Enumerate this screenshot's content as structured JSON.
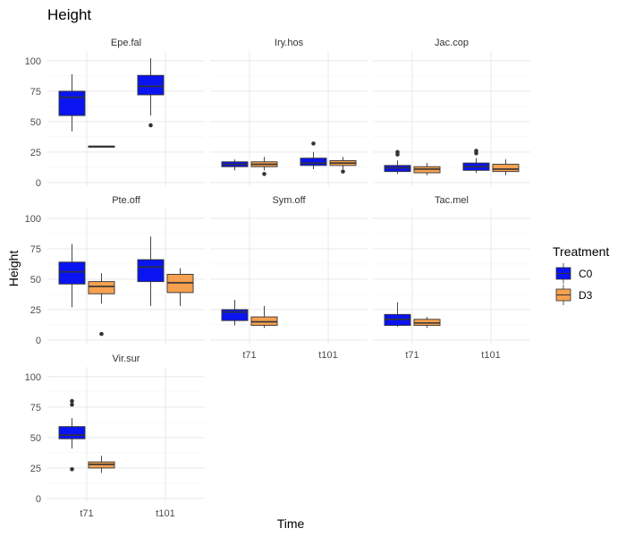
{
  "chart_data": {
    "type": "boxplot",
    "title": "Height",
    "xlabel": "Time",
    "ylabel": "Height",
    "ylim": [
      -3,
      108
    ],
    "yticks": [
      0,
      25,
      50,
      75,
      100
    ],
    "x_categories": [
      "t71",
      "t101"
    ],
    "legend": {
      "title": "Treatment",
      "position": "right",
      "entries": [
        {
          "name": "C0",
          "color": "#0a14f0"
        },
        {
          "name": "D3",
          "color": "#f5a150"
        }
      ]
    },
    "facets": [
      {
        "name": "Epe.fal",
        "boxes": [
          {
            "time": "t71",
            "treatment": "C0",
            "min": 42,
            "q1": 55,
            "median": 70,
            "q3": 75,
            "max": 89,
            "outliers": []
          },
          {
            "time": "t71",
            "treatment": "D3",
            "min": 29,
            "q1": 29,
            "median": 29.5,
            "q3": 30,
            "max": 30,
            "outliers": []
          },
          {
            "time": "t101",
            "treatment": "C0",
            "min": 55,
            "q1": 72,
            "median": 79,
            "q3": 88,
            "max": 102,
            "outliers": [
              47
            ]
          }
        ]
      },
      {
        "name": "Iry.hos",
        "boxes": [
          {
            "time": "t71",
            "treatment": "C0",
            "min": 10,
            "q1": 13,
            "median": 15,
            "q3": 17,
            "max": 19,
            "outliers": []
          },
          {
            "time": "t71",
            "treatment": "D3",
            "min": 10,
            "q1": 13,
            "median": 15,
            "q3": 17,
            "max": 21,
            "outliers": [
              7
            ]
          },
          {
            "time": "t101",
            "treatment": "C0",
            "min": 11,
            "q1": 14,
            "median": 16,
            "q3": 20,
            "max": 25,
            "outliers": [
              32
            ]
          },
          {
            "time": "t101",
            "treatment": "D3",
            "min": 11,
            "q1": 14,
            "median": 16,
            "q3": 18,
            "max": 21,
            "outliers": [
              9
            ]
          }
        ]
      },
      {
        "name": "Jac.cop",
        "boxes": [
          {
            "time": "t71",
            "treatment": "C0",
            "min": 7,
            "q1": 9,
            "median": 12,
            "q3": 14,
            "max": 18,
            "outliers": [
              23,
              25
            ]
          },
          {
            "time": "t71",
            "treatment": "D3",
            "min": 6,
            "q1": 8,
            "median": 11,
            "q3": 13,
            "max": 16,
            "outliers": []
          },
          {
            "time": "t101",
            "treatment": "C0",
            "min": 8,
            "q1": 10,
            "median": 13,
            "q3": 16,
            "max": 20,
            "outliers": [
              24,
              26
            ]
          },
          {
            "time": "t101",
            "treatment": "D3",
            "min": 6,
            "q1": 9,
            "median": 11,
            "q3": 15,
            "max": 19,
            "outliers": []
          }
        ]
      },
      {
        "name": "Pte.off",
        "boxes": [
          {
            "time": "t71",
            "treatment": "C0",
            "min": 27,
            "q1": 46,
            "median": 56,
            "q3": 64,
            "max": 79,
            "outliers": []
          },
          {
            "time": "t71",
            "treatment": "D3",
            "min": 30,
            "q1": 38,
            "median": 44,
            "q3": 48,
            "max": 55,
            "outliers": [
              5
            ]
          },
          {
            "time": "t101",
            "treatment": "C0",
            "min": 28,
            "q1": 48,
            "median": 60,
            "q3": 66,
            "max": 85,
            "outliers": []
          },
          {
            "time": "t101",
            "treatment": "D3",
            "min": 28,
            "q1": 39,
            "median": 47,
            "q3": 54,
            "max": 59,
            "outliers": []
          }
        ]
      },
      {
        "name": "Sym.off",
        "boxes": [
          {
            "time": "t71",
            "treatment": "C0",
            "min": 12,
            "q1": 16,
            "median": 23,
            "q3": 25,
            "max": 33,
            "outliers": []
          },
          {
            "time": "t71",
            "treatment": "D3",
            "min": 10,
            "q1": 12,
            "median": 15,
            "q3": 19,
            "max": 28,
            "outliers": []
          }
        ]
      },
      {
        "name": "Tac.mel",
        "boxes": [
          {
            "time": "t71",
            "treatment": "C0",
            "min": 11,
            "q1": 12,
            "median": 17,
            "q3": 21,
            "max": 31,
            "outliers": []
          },
          {
            "time": "t71",
            "treatment": "D3",
            "min": 10,
            "q1": 12,
            "median": 14,
            "q3": 17,
            "max": 19,
            "outliers": []
          }
        ]
      },
      {
        "name": "Vir.sur",
        "boxes": [
          {
            "time": "t71",
            "treatment": "C0",
            "min": 41,
            "q1": 49,
            "median": 52,
            "q3": 59,
            "max": 66,
            "outliers": [
              24,
              77,
              80
            ]
          },
          {
            "time": "t71",
            "treatment": "D3",
            "min": 21,
            "q1": 25,
            "median": 28,
            "q3": 30,
            "max": 35,
            "outliers": []
          }
        ]
      }
    ]
  }
}
